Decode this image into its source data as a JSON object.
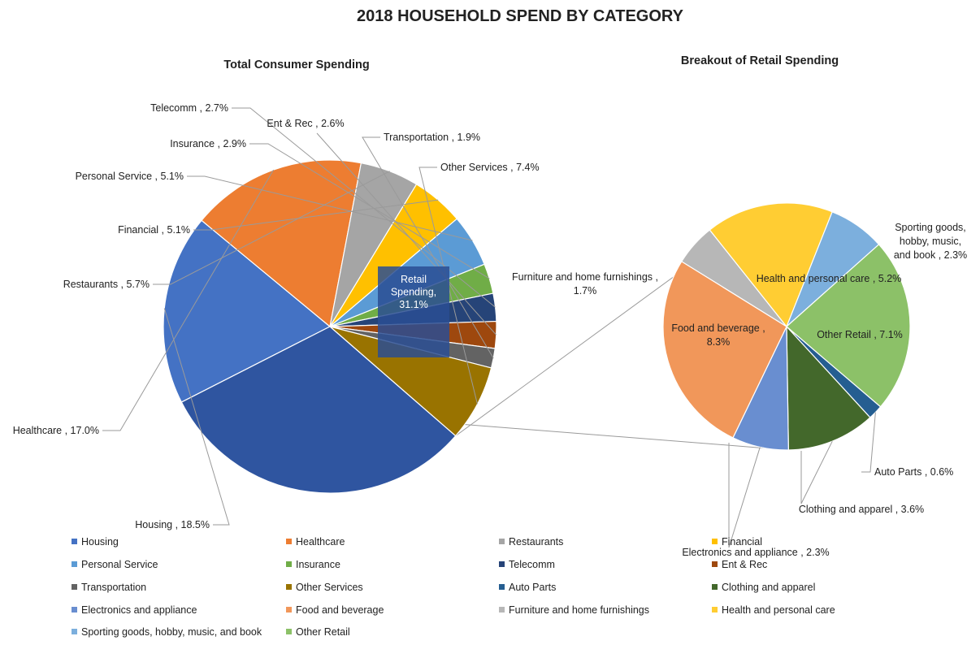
{
  "chart_data": {
    "type": "pie",
    "title": "2018 HOUSEHOLD SPEND BY CATEGORY",
    "variant": "pie-of-pie",
    "primary": {
      "subtitle": "Total Consumer Spending",
      "slices": [
        {
          "name": "Housing",
          "value": 18.5,
          "label": "Housing , 18.5%",
          "color": "#4472C4"
        },
        {
          "name": "Healthcare",
          "value": 17.0,
          "label": "Healthcare , 17.0%",
          "color": "#ED7D31"
        },
        {
          "name": "Restaurants",
          "value": 5.7,
          "label": "Restaurants , 5.7%",
          "color": "#A5A5A5"
        },
        {
          "name": "Financial",
          "value": 5.1,
          "label": "Financial , 5.1%",
          "color": "#FFC000"
        },
        {
          "name": "Personal Service",
          "value": 5.1,
          "label": "Personal Service , 5.1%",
          "color": "#5B9BD5"
        },
        {
          "name": "Insurance",
          "value": 2.9,
          "label": "Insurance , 2.9%",
          "color": "#70AD47"
        },
        {
          "name": "Telecomm",
          "value": 2.7,
          "label": "Telecomm , 2.7%",
          "color": "#264478"
        },
        {
          "name": "Ent & Rec",
          "value": 2.6,
          "label": "Ent & Rec , 2.6%",
          "color": "#9E480E"
        },
        {
          "name": "Transportation",
          "value": 1.9,
          "label": "Transportation , 1.9%",
          "color": "#636363"
        },
        {
          "name": "Other Services",
          "value": 7.4,
          "label": "Other Services , 7.4%",
          "color": "#997300"
        },
        {
          "name": "Retail Spending",
          "value": 31.1,
          "label_lines": [
            "Retail",
            "Spending,",
            "31.1%"
          ],
          "color": "#2F55A0"
        }
      ]
    },
    "secondary": {
      "subtitle": "Breakout of Retail Spending",
      "slices": [
        {
          "name": "Auto Parts",
          "value": 0.6,
          "label": "Auto Parts , 0.6%",
          "color": "#255E91"
        },
        {
          "name": "Clothing and apparel",
          "value": 3.6,
          "label": "Clothing and apparel , 3.6%",
          "color": "#43682B"
        },
        {
          "name": "Electronics and appliance",
          "value": 2.3,
          "label": "Electronics and appliance , 2.3%",
          "color": "#698ED0"
        },
        {
          "name": "Food and beverage",
          "value": 8.3,
          "label_lines": [
            "Food and beverage ,",
            "8.3%"
          ],
          "color": "#F1975A"
        },
        {
          "name": "Furniture and home furnishings",
          "value": 1.7,
          "label_lines": [
            "Furniture and home furnishings ,",
            "1.7%"
          ],
          "color": "#B7B7B7"
        },
        {
          "name": "Health and personal care",
          "value": 5.2,
          "label": "Health and personal care , 5.2%",
          "color": "#FFCD33"
        },
        {
          "name": "Sporting goods, hobby, music, and book",
          "value": 2.3,
          "label_lines": [
            "Sporting goods,",
            "hobby, music,",
            "and book , 2.3%"
          ],
          "color": "#7CAFDD"
        },
        {
          "name": "Other Retail",
          "value": 7.1,
          "label": "Other Retail , 7.1%",
          "color": "#8CC168"
        }
      ]
    },
    "legend": [
      {
        "name": "Housing",
        "color": "#4472C4"
      },
      {
        "name": "Healthcare",
        "color": "#ED7D31"
      },
      {
        "name": "Restaurants",
        "color": "#A5A5A5"
      },
      {
        "name": "Financial",
        "color": "#FFC000"
      },
      {
        "name": "Personal Service",
        "color": "#5B9BD5"
      },
      {
        "name": "Insurance",
        "color": "#70AD47"
      },
      {
        "name": "Telecomm",
        "color": "#264478"
      },
      {
        "name": "Ent & Rec",
        "color": "#9E480E"
      },
      {
        "name": "Transportation",
        "color": "#636363"
      },
      {
        "name": "Other Services",
        "color": "#997300"
      },
      {
        "name": "Auto Parts",
        "color": "#255E91"
      },
      {
        "name": "Clothing and apparel",
        "color": "#43682B"
      },
      {
        "name": "Electronics and appliance",
        "color": "#698ED0"
      },
      {
        "name": "Food and beverage",
        "color": "#F1975A"
      },
      {
        "name": "Furniture and home furnishings",
        "color": "#B7B7B7"
      },
      {
        "name": "Health and personal care",
        "color": "#FFCD33"
      },
      {
        "name": "Sporting goods, hobby, music, and book",
        "color": "#7CAFDD"
      },
      {
        "name": "Other Retail",
        "color": "#8CC168"
      }
    ],
    "legend_placement": "bottom"
  }
}
